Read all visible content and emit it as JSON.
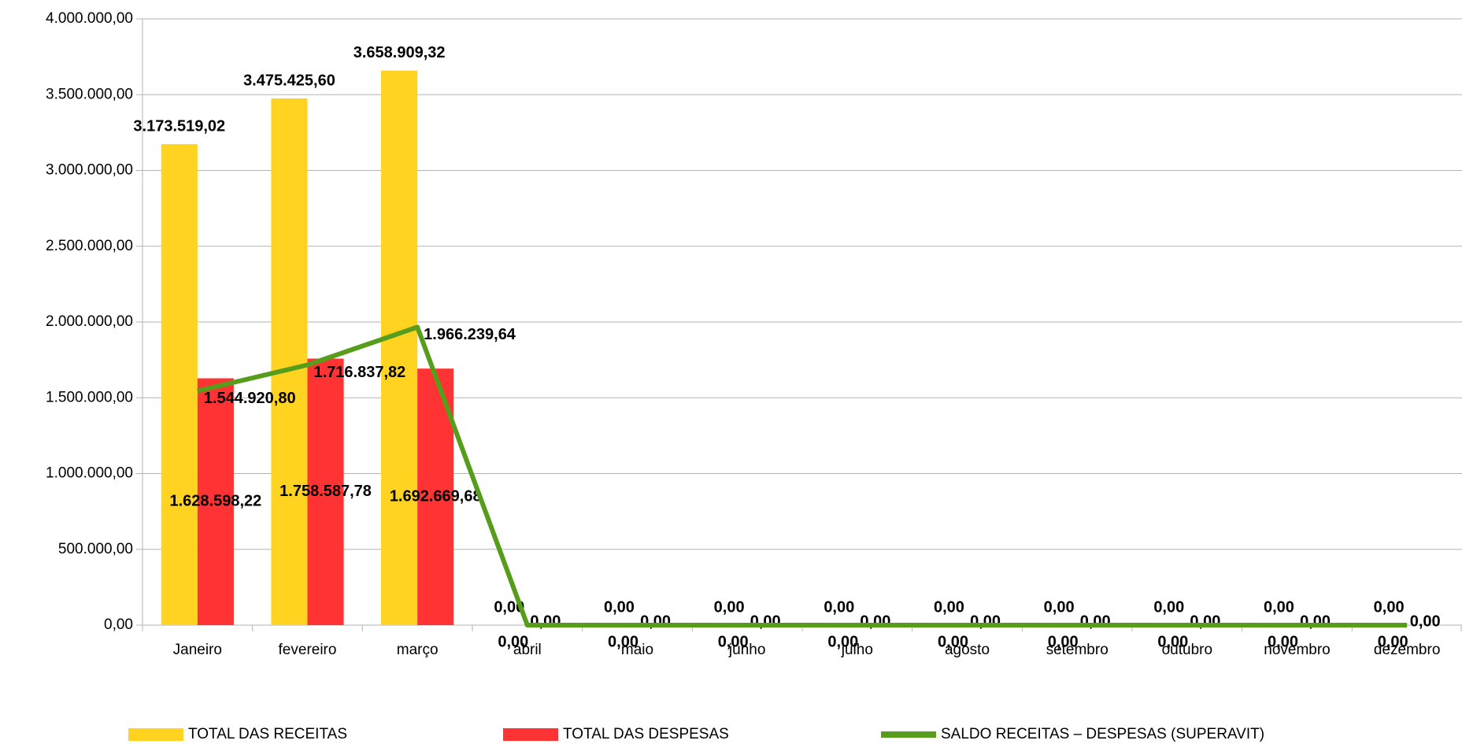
{
  "chart_data": {
    "type": "bar-line",
    "categories": [
      "Janeiro",
      "fevereiro",
      "março",
      "abril",
      "maio",
      "junho",
      "julho",
      "agosto",
      "setembro",
      "outubro",
      "novembro",
      "dezembro"
    ],
    "series": [
      {
        "name": "TOTAL DAS RECEITAS",
        "color": "#ffd320",
        "type": "bar",
        "values": [
          3173519.02,
          3475425.6,
          3658909.32,
          0,
          0,
          0,
          0,
          0,
          0,
          0,
          0,
          0
        ],
        "value_labels": [
          "3.173.519,02",
          "3.475.425,60",
          "3.658.909,32",
          "0,00",
          "0,00",
          "0,00",
          "0,00",
          "0,00",
          "0,00",
          "0,00",
          "0,00",
          "0,00"
        ]
      },
      {
        "name": "TOTAL DAS DESPESAS",
        "color": "#ff3333",
        "type": "bar",
        "values": [
          1628598.22,
          1758587.78,
          1692669.68,
          0,
          0,
          0,
          0,
          0,
          0,
          0,
          0,
          0
        ],
        "value_labels": [
          "1.628.598,22",
          "1.758.587,78",
          "1.692.669,68",
          "0,00",
          "0,00",
          "0,00",
          "0,00",
          "0,00",
          "0,00",
          "0,00",
          "0,00",
          "0,00"
        ]
      },
      {
        "name": "SALDO RECEITAS – DESPESAS (SUPERAVIT)",
        "color": "#579d1c",
        "type": "line",
        "values": [
          1544920.8,
          1716837.82,
          1966239.64,
          0,
          0,
          0,
          0,
          0,
          0,
          0,
          0,
          0
        ],
        "value_labels": [
          "1.544.920,80",
          "1.716.837,82",
          "1.966.239,64",
          "0,00",
          "0,00",
          "0,00",
          "0,00",
          "0,00",
          "0,00",
          "0,00",
          "0,00",
          "0,00"
        ]
      }
    ],
    "ylim": [
      0,
      4000000
    ],
    "yticks": [
      {
        "value": 0,
        "label": "0,00"
      },
      {
        "value": 500000,
        "label": "500.000,00"
      },
      {
        "value": 1000000,
        "label": "1.000.000,00"
      },
      {
        "value": 1500000,
        "label": "1.500.000,00"
      },
      {
        "value": 2000000,
        "label": "2.000.000,00"
      },
      {
        "value": 2500000,
        "label": "2.500.000,00"
      },
      {
        "value": 3000000,
        "label": "3.000.000,00"
      },
      {
        "value": 3500000,
        "label": "3.500.000,00"
      },
      {
        "value": 4000000,
        "label": "4.000.000,00"
      }
    ],
    "grid": true,
    "legend": "bottom"
  }
}
